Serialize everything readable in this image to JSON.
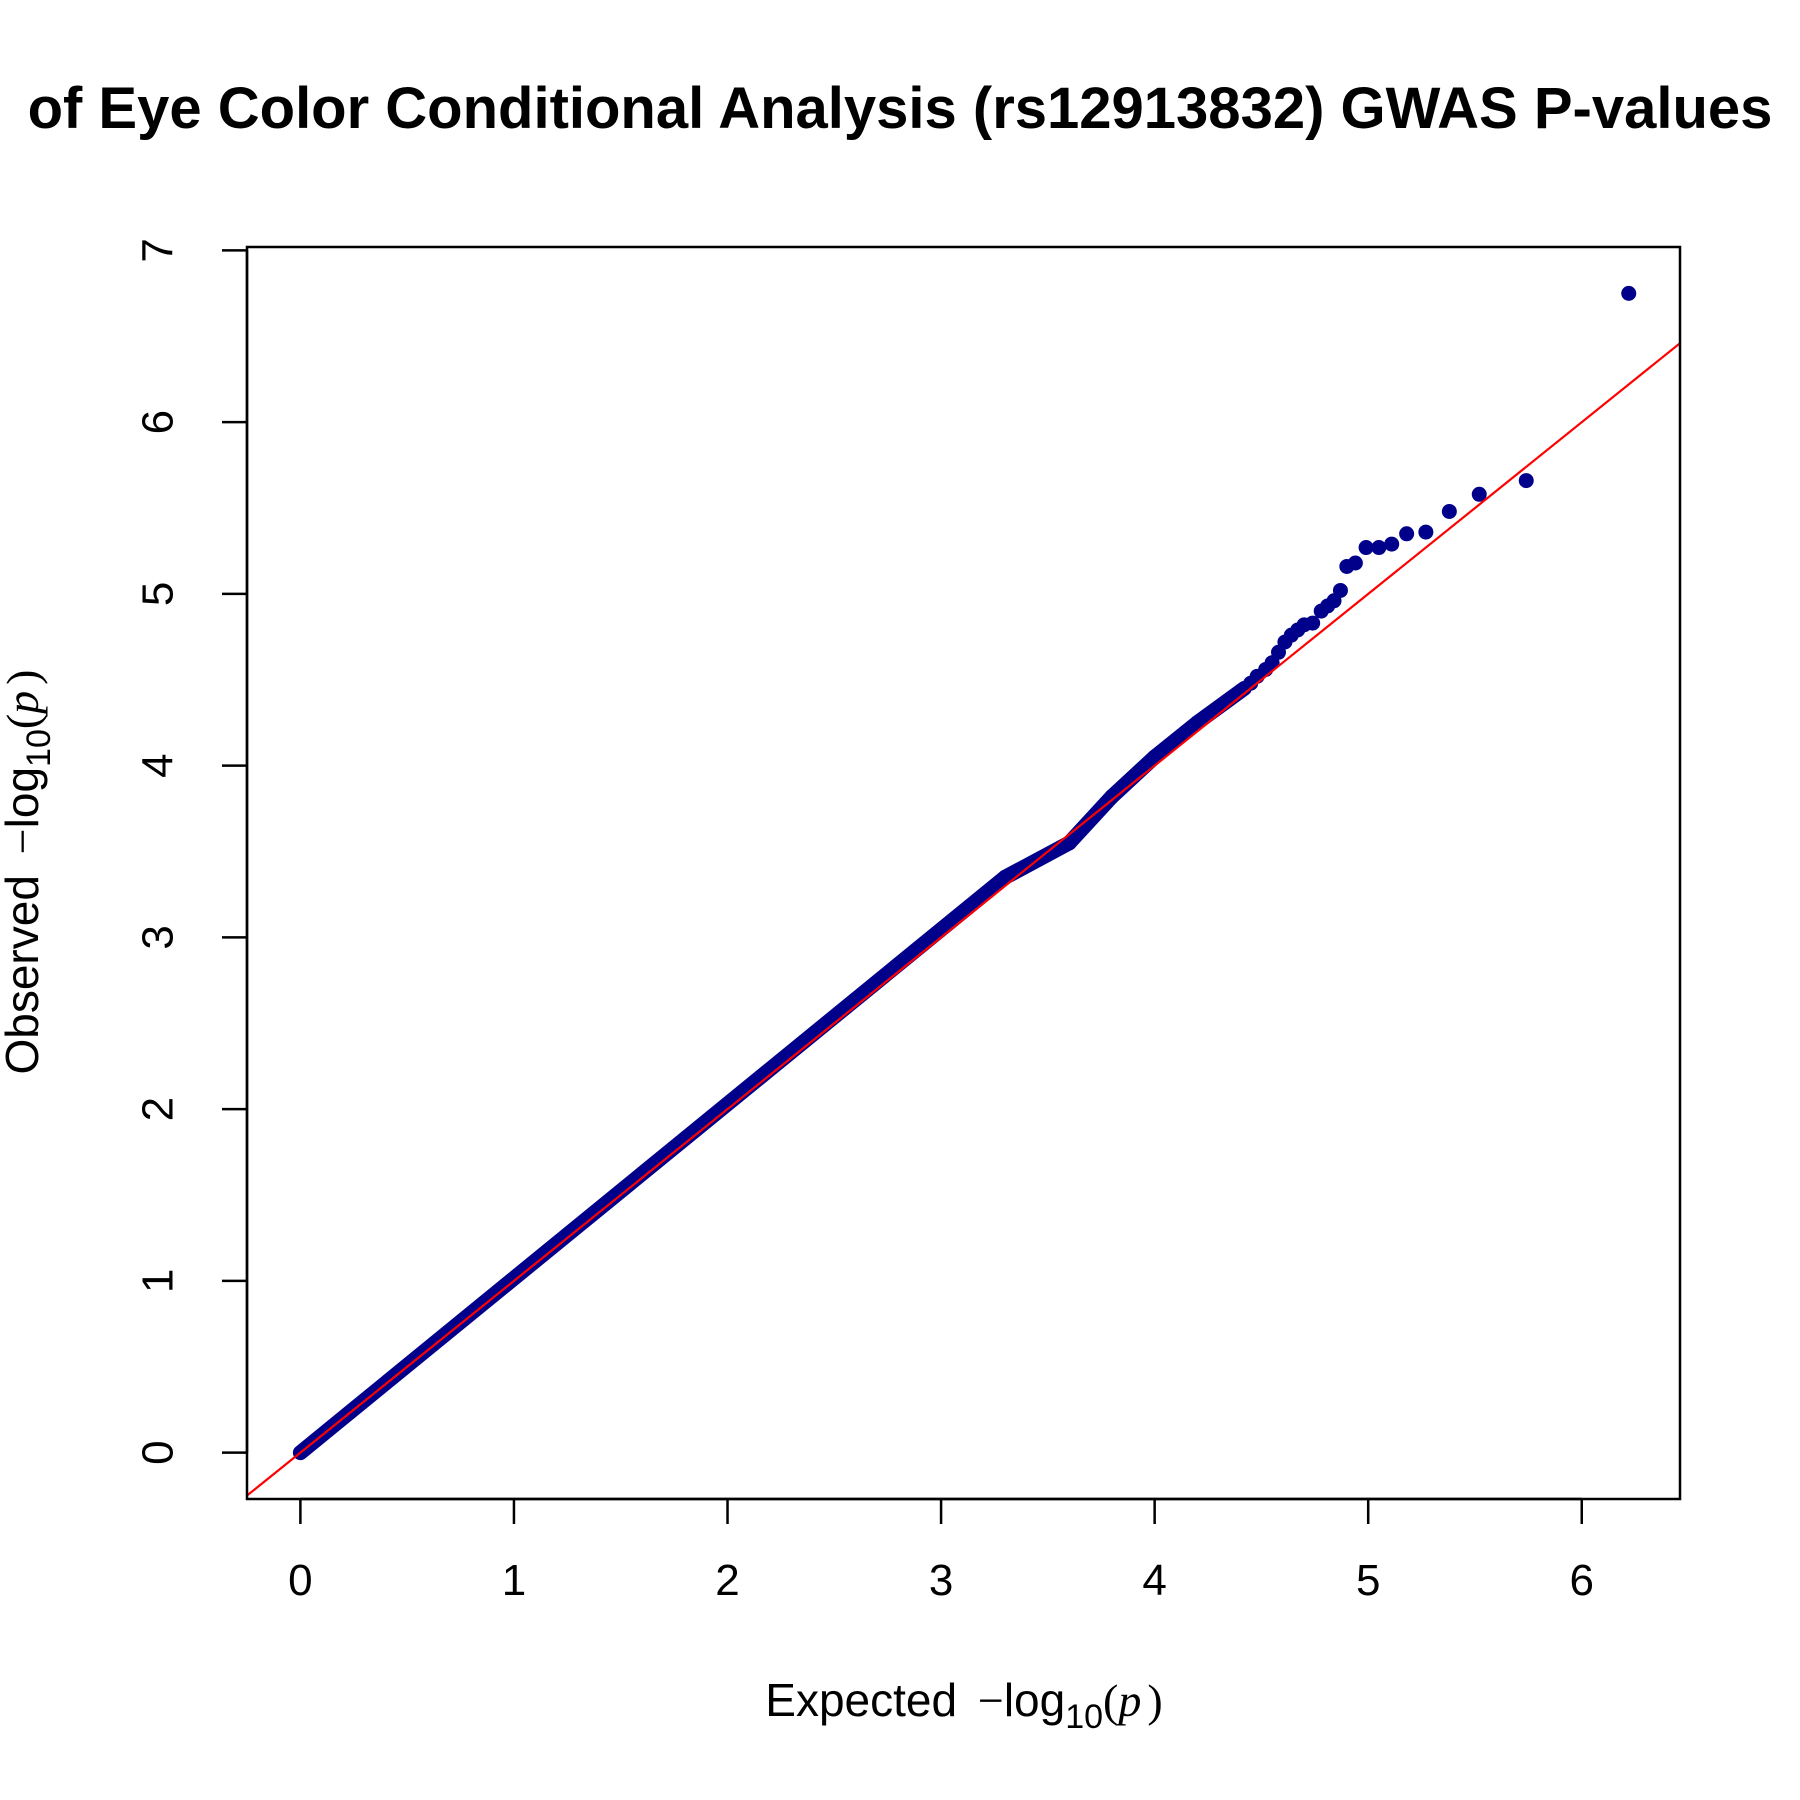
{
  "chart_data": {
    "type": "scatter",
    "title": "of Eye Color Conditional Analysis (rs12913832) GWAS P-values",
    "xlabel": {
      "prefix": "Expected",
      "minus": "−",
      "log": "log",
      "sub": "10",
      "open": "(",
      "var": "p",
      "close": ")"
    },
    "ylabel": {
      "prefix": "Observed",
      "minus": "−",
      "log": "log",
      "sub": "10",
      "open": "(",
      "var": "p",
      "close": ")"
    },
    "xlim": [
      -0.25,
      6.46
    ],
    "ylim": [
      -0.27,
      7.02
    ],
    "xticks": [
      0,
      1,
      2,
      3,
      4,
      5,
      6
    ],
    "yticks": [
      0,
      1,
      2,
      3,
      4,
      5,
      6,
      7
    ],
    "grid": false,
    "point_color": "#00008B",
    "reference_line": {
      "slope": 1,
      "intercept": 0,
      "color": "#FF0000"
    },
    "dense_segments": [
      {
        "x0": 0.0,
        "y0": 0.0,
        "x1": 3.3,
        "y1": 3.35
      },
      {
        "x0": 3.3,
        "y0": 3.35,
        "x1": 3.6,
        "y1": 3.55
      },
      {
        "x0": 3.6,
        "y0": 3.55,
        "x1": 3.8,
        "y1": 3.82
      },
      {
        "x0": 3.8,
        "y0": 3.82,
        "x1": 4.0,
        "y1": 4.05
      },
      {
        "x0": 4.0,
        "y0": 4.05,
        "x1": 4.2,
        "y1": 4.25
      },
      {
        "x0": 4.2,
        "y0": 4.25,
        "x1": 4.42,
        "y1": 4.45
      }
    ],
    "points": [
      {
        "x": 4.45,
        "y": 4.48
      },
      {
        "x": 4.48,
        "y": 4.52
      },
      {
        "x": 4.52,
        "y": 4.56
      },
      {
        "x": 4.55,
        "y": 4.6
      },
      {
        "x": 4.58,
        "y": 4.66
      },
      {
        "x": 4.61,
        "y": 4.72
      },
      {
        "x": 4.64,
        "y": 4.76
      },
      {
        "x": 4.67,
        "y": 4.79
      },
      {
        "x": 4.7,
        "y": 4.82
      },
      {
        "x": 4.74,
        "y": 4.83
      },
      {
        "x": 4.78,
        "y": 4.9
      },
      {
        "x": 4.81,
        "y": 4.93
      },
      {
        "x": 4.84,
        "y": 4.96
      },
      {
        "x": 4.87,
        "y": 5.02
      },
      {
        "x": 4.9,
        "y": 5.16
      },
      {
        "x": 4.94,
        "y": 5.18
      },
      {
        "x": 4.99,
        "y": 5.27
      },
      {
        "x": 5.05,
        "y": 5.27
      },
      {
        "x": 5.11,
        "y": 5.29
      },
      {
        "x": 5.18,
        "y": 5.35
      },
      {
        "x": 5.27,
        "y": 5.36
      },
      {
        "x": 5.38,
        "y": 5.48
      },
      {
        "x": 5.52,
        "y": 5.58
      },
      {
        "x": 5.74,
        "y": 5.66
      },
      {
        "x": 6.22,
        "y": 6.75
      }
    ]
  }
}
